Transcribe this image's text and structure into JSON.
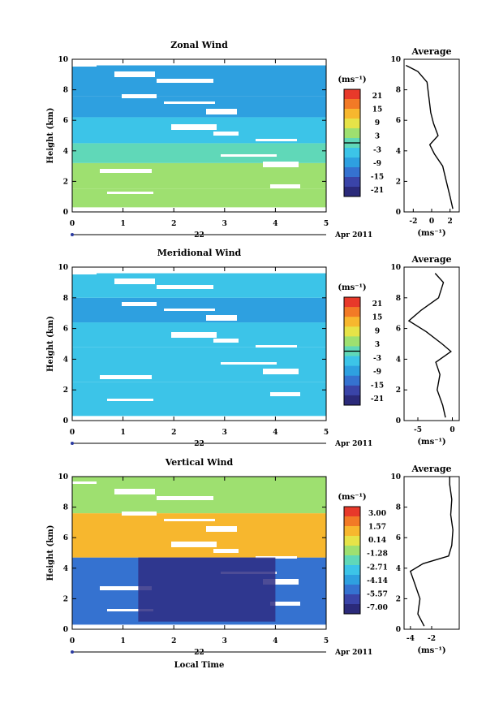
{
  "panels": [
    {
      "title": "Zonal Wind",
      "ylabel": "Height (km)",
      "yticks": [
        "0",
        "2",
        "4",
        "6",
        "8",
        "10"
      ],
      "xticks": [
        "0",
        "1",
        "2",
        "3",
        "4",
        "5"
      ],
      "date_day": "22",
      "date_month_year": "Apr 2011",
      "unit_label": "(ms⁻¹)",
      "colorbar_ticks": [
        "21",
        "15",
        "9",
        "3",
        "-3",
        "-9",
        "-15",
        "-21"
      ],
      "avg_title": "Average",
      "avg_xticks": [
        "-2",
        "0",
        "2"
      ],
      "avg_yticks": [
        "0",
        "2",
        "4",
        "6",
        "8",
        "10"
      ],
      "avg_unit": "(ms⁻¹)"
    },
    {
      "title": "Meridional Wind",
      "ylabel": "Height (km)",
      "yticks": [
        "0",
        "2",
        "4",
        "6",
        "8",
        "10"
      ],
      "xticks": [
        "0",
        "1",
        "2",
        "3",
        "4",
        "5"
      ],
      "date_day": "22",
      "date_month_year": "Apr 2011",
      "unit_label": "(ms⁻¹)",
      "colorbar_ticks": [
        "21",
        "15",
        "9",
        "3",
        "-3",
        "-9",
        "-15",
        "-21"
      ],
      "avg_title": "Average",
      "avg_xticks": [
        "-5",
        "0"
      ],
      "avg_yticks": [
        "0",
        "2",
        "4",
        "6",
        "8",
        "10"
      ],
      "avg_unit": "(ms⁻¹)"
    },
    {
      "title": "Vertical Wind",
      "ylabel": "Height (km)",
      "yticks": [
        "0",
        "2",
        "4",
        "6",
        "8",
        "10"
      ],
      "xticks": [
        "0",
        "1",
        "2",
        "3",
        "4",
        "5"
      ],
      "date_day": "22",
      "date_month_year": "Apr 2011",
      "unit_label": "(ms⁻¹)",
      "colorbar_ticks": [
        "3.00",
        "1.57",
        "0.14",
        "-1.28",
        "-2.71",
        "-4.14",
        "-5.57",
        "-7.00"
      ],
      "avg_title": "Average",
      "avg_xticks": [
        "-4",
        "-2"
      ],
      "avg_yticks": [
        "0",
        "2",
        "4",
        "6",
        "8",
        "10"
      ],
      "avg_unit": "(ms⁻¹)",
      "xlabel": "Local Time"
    }
  ],
  "chart_data": [
    {
      "type": "heatmap",
      "title": "Zonal Wind",
      "ylabel": "Height (km)",
      "x_range": [
        0,
        5
      ],
      "y_range": [
        0,
        10
      ],
      "color_range": [
        -24,
        24
      ],
      "bands": [
        {
          "y": [
            0.3,
            1.5
          ],
          "value": 6
        },
        {
          "y": [
            1.5,
            3.2
          ],
          "value": 4
        },
        {
          "y": [
            3.2,
            4.5
          ],
          "value": -1
        },
        {
          "y": [
            4.5,
            6.2
          ],
          "value": -6
        },
        {
          "y": [
            6.2,
            7.6
          ],
          "value": -9
        },
        {
          "y": [
            7.6,
            9.6
          ],
          "value": -8
        }
      ],
      "average_profile": {
        "x_range": [
          -3,
          3
        ],
        "height": [
          0.2,
          1,
          2,
          3,
          3.8,
          4.4,
          5,
          5.8,
          6.5,
          7.5,
          8.5,
          9.2,
          9.6
        ],
        "value": [
          2.3,
          2.0,
          1.6,
          1.2,
          0.3,
          -0.2,
          0.7,
          0.2,
          -0.1,
          -0.3,
          -0.5,
          -1.5,
          -2.8
        ]
      }
    },
    {
      "type": "heatmap",
      "title": "Meridional Wind",
      "ylabel": "Height (km)",
      "x_range": [
        0,
        5
      ],
      "y_range": [
        0,
        10
      ],
      "color_range": [
        -24,
        24
      ],
      "bands": [
        {
          "y": [
            0.3,
            2.5
          ],
          "value": -4
        },
        {
          "y": [
            2.5,
            4.8
          ],
          "value": -6
        },
        {
          "y": [
            4.8,
            6.4
          ],
          "value": -4
        },
        {
          "y": [
            6.4,
            8.0
          ],
          "value": -9
        },
        {
          "y": [
            8.0,
            9.6
          ],
          "value": -6
        }
      ],
      "average_profile": {
        "x_range": [
          -7,
          1
        ],
        "height": [
          0.2,
          1,
          2,
          3,
          3.8,
          4.5,
          5,
          5.8,
          6.5,
          7.2,
          8,
          9,
          9.6
        ],
        "value": [
          -1.0,
          -1.4,
          -2.2,
          -1.8,
          -2.4,
          -0.2,
          -1.5,
          -3.8,
          -6.3,
          -4.5,
          -2.0,
          -1.3,
          -2.5
        ]
      }
    },
    {
      "type": "heatmap",
      "title": "Vertical Wind",
      "ylabel": "Height (km)",
      "xlabel": "Local Time",
      "x_range": [
        0,
        5
      ],
      "y_range": [
        0,
        10
      ],
      "color_range": [
        -7,
        3
      ],
      "bands": [
        {
          "y": [
            0.3,
            4.7
          ],
          "value": -4.5
        },
        {
          "y": [
            4.7,
            7.6
          ],
          "value": 0.3
        },
        {
          "y": [
            7.6,
            10.0
          ],
          "value": -0.9
        }
      ],
      "average_profile": {
        "x_range": [
          -4.6,
          0.6
        ],
        "height": [
          0.2,
          1,
          2,
          3,
          3.8,
          4.3,
          4.8,
          5.5,
          6.5,
          7.5,
          8.5,
          9.5,
          10
        ],
        "value": [
          -2.7,
          -3.3,
          -3.1,
          -3.6,
          -4.0,
          -2.8,
          -0.4,
          -0.1,
          0.0,
          -0.2,
          -0.1,
          -0.3,
          -0.3
        ]
      }
    }
  ]
}
